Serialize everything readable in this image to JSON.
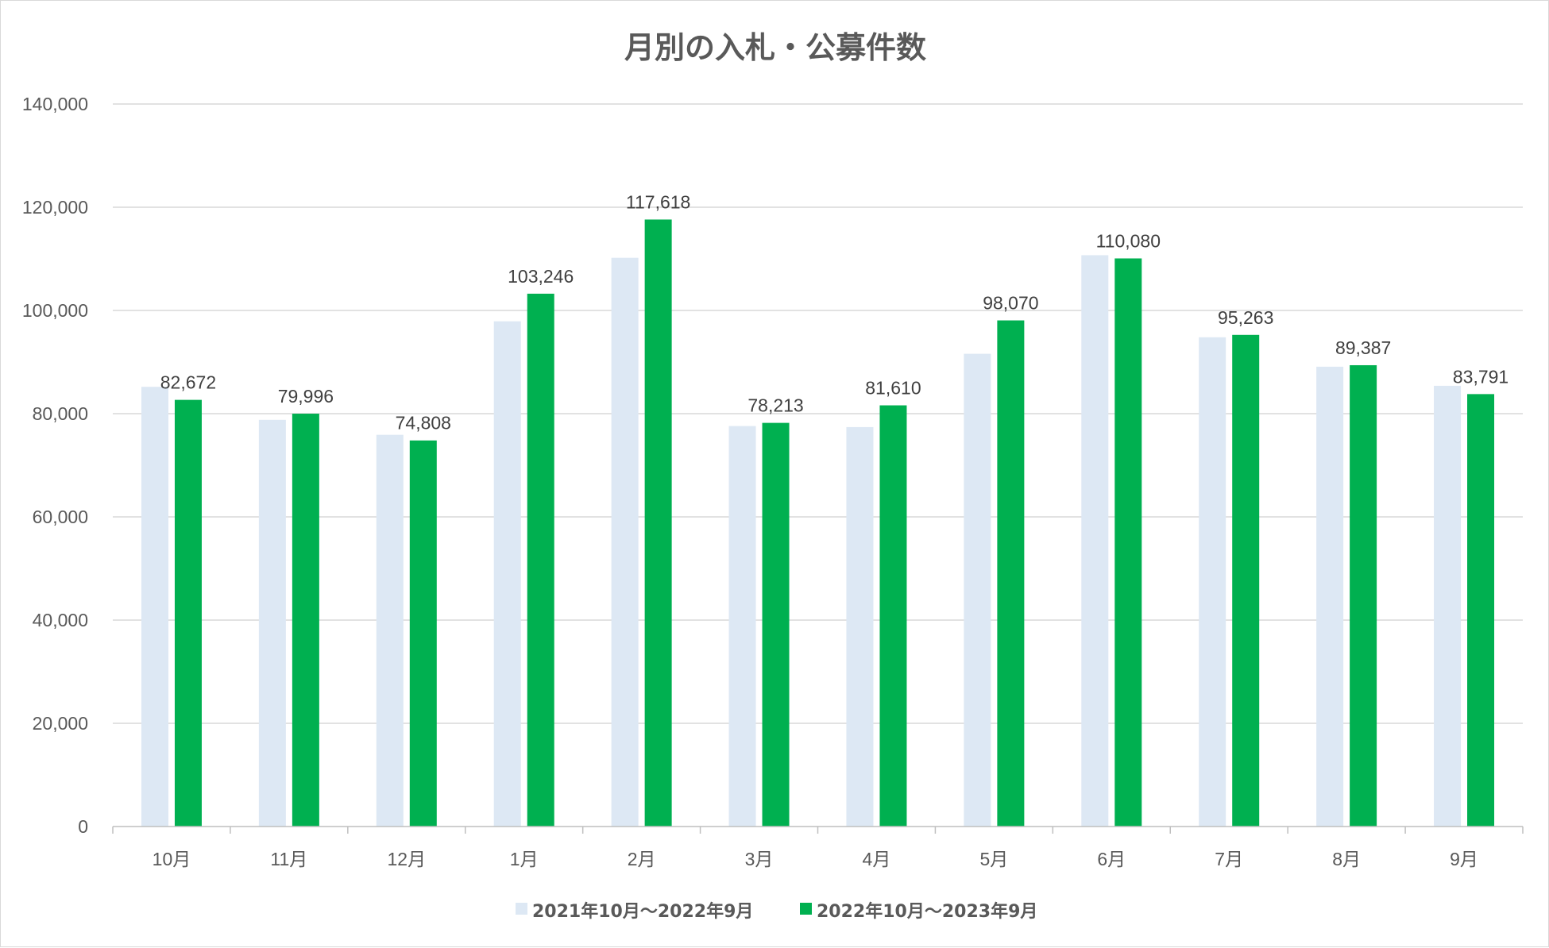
{
  "colors": {
    "series0": "#dde8f4",
    "series1": "#00b050",
    "grid": "#d9d9d9",
    "axis": "#bfbfbf",
    "text": "#595959"
  },
  "chart_data": {
    "type": "bar",
    "title": "月別の入札・公募件数",
    "xlabel": "",
    "ylabel": "",
    "ylim": [
      0,
      140000
    ],
    "yticks": [
      0,
      20000,
      40000,
      60000,
      80000,
      100000,
      120000,
      140000
    ],
    "ytick_labels": [
      "0",
      "20,000",
      "40,000",
      "60,000",
      "80,000",
      "100,000",
      "120,000",
      "140,000"
    ],
    "categories": [
      "10月",
      "11月",
      "12月",
      "1月",
      "2月",
      "3月",
      "4月",
      "5月",
      "6月",
      "7月",
      "8月",
      "9月"
    ],
    "series": [
      {
        "name": "2021年10月～2022年9月",
        "color": "#dde8f4",
        "values": [
          85200,
          78800,
          75900,
          97900,
          110200,
          77600,
          77400,
          91600,
          110700,
          94800,
          89100,
          85400
        ]
      },
      {
        "name": "2022年10月～2023年9月",
        "color": "#00b050",
        "values": [
          82672,
          79996,
          74808,
          103246,
          117618,
          78213,
          81610,
          98070,
          110080,
          95263,
          89387,
          83791
        ]
      }
    ],
    "data_labels": [
      "82,672",
      "79,996",
      "74,808",
      "103,246",
      "117,618",
      "78,213",
      "81,610",
      "98,070",
      "110,080",
      "95,263",
      "89,387",
      "83,791"
    ],
    "grid": true,
    "legend_position": "bottom"
  }
}
